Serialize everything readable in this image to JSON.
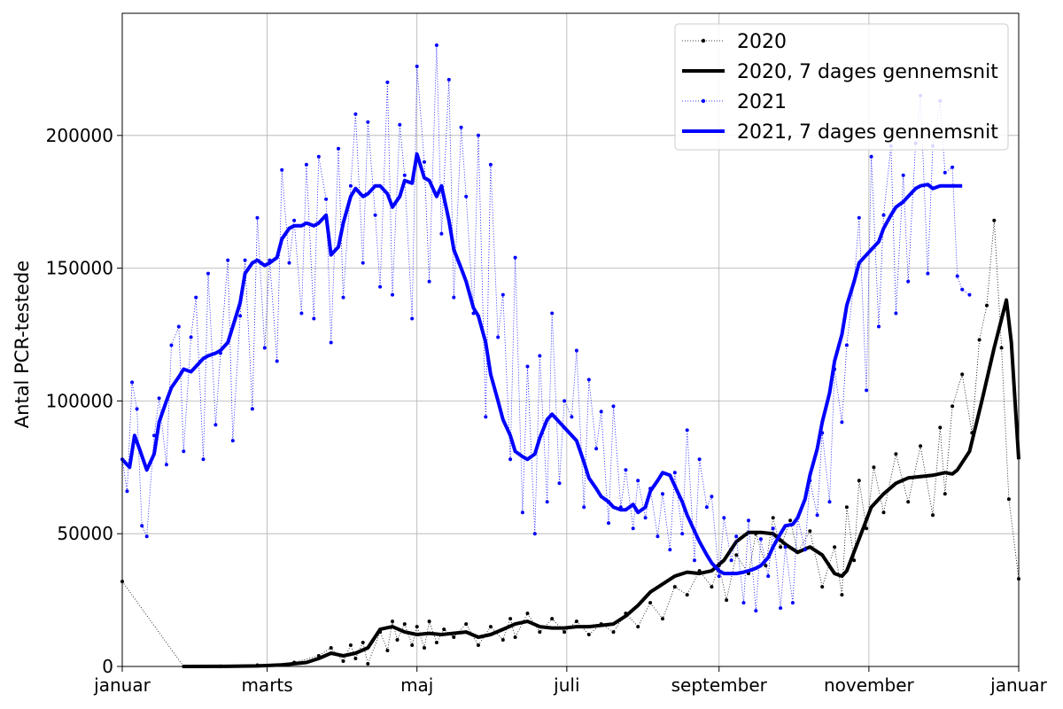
{
  "chart_data": {
    "type": "line",
    "title": "",
    "xlabel": "",
    "ylabel": "Antal PCR-testede",
    "x_ticks": [
      "januar",
      "marts",
      "maj",
      "juli",
      "september",
      "november",
      "januar"
    ],
    "x_tick_days": [
      0,
      59,
      120,
      181,
      243,
      304,
      365
    ],
    "y_ticks": [
      "0",
      "50000",
      "100000",
      "150000",
      "200000"
    ],
    "y_tick_values": [
      0,
      50000,
      100000,
      150000,
      200000
    ],
    "xlim_days": [
      0,
      365
    ],
    "ylim": [
      0,
      246000
    ],
    "grid": true,
    "legend_position": "top-right",
    "legend": [
      {
        "label": "2020",
        "series": "2020_daily"
      },
      {
        "label": "2020, 7 dages gennemsnit",
        "series": "2020_avg"
      },
      {
        "label": "2021",
        "series": "2021_daily"
      },
      {
        "label": "2021, 7 dages gennemsnit",
        "series": "2021_avg"
      }
    ],
    "series": [
      {
        "name": "2020",
        "key": "2020_daily",
        "color": "#000000",
        "style": "dotted-with-markers",
        "x_days": [
          0,
          25,
          40,
          55,
          70,
          80,
          85,
          90,
          93,
          95,
          98,
          100,
          105,
          108,
          110,
          112,
          115,
          118,
          120,
          123,
          125,
          128,
          131,
          135,
          140,
          145,
          150,
          155,
          158,
          160,
          165,
          170,
          175,
          180,
          185,
          190,
          195,
          200,
          205,
          210,
          215,
          220,
          225,
          230,
          235,
          240,
          243,
          246,
          250,
          255,
          258,
          262,
          265,
          268,
          272,
          275,
          280,
          285,
          290,
          293,
          295,
          298,
          300,
          303,
          306,
          310,
          315,
          320,
          325,
          330,
          333,
          335,
          338,
          342,
          346,
          349,
          352,
          355,
          358,
          361,
          365
        ],
        "values": [
          32000,
          0,
          100,
          500,
          1500,
          4000,
          7000,
          2000,
          8000,
          3000,
          9000,
          1000,
          13000,
          6000,
          17000,
          10000,
          16000,
          8000,
          15000,
          7000,
          17000,
          9000,
          14000,
          11000,
          16000,
          8000,
          15000,
          10000,
          18000,
          11000,
          20000,
          13000,
          18000,
          13000,
          17000,
          12000,
          16000,
          13000,
          20000,
          15000,
          24000,
          18000,
          30000,
          27000,
          36000,
          30000,
          38000,
          25000,
          42000,
          35000,
          50000,
          38000,
          56000,
          45000,
          55000,
          43000,
          51000,
          30000,
          45000,
          27000,
          60000,
          40000,
          70000,
          52000,
          75000,
          58000,
          80000,
          62000,
          83000,
          57000,
          90000,
          65000,
          98000,
          110000,
          88000,
          123000,
          136000,
          168000,
          120000,
          63000,
          33000
        ]
      },
      {
        "name": "2020, 7 dages gennemsnit",
        "key": "2020_avg",
        "color": "#000000",
        "style": "thick",
        "x_days": [
          25,
          40,
          55,
          65,
          75,
          80,
          85,
          90,
          95,
          100,
          105,
          110,
          115,
          120,
          125,
          130,
          140,
          145,
          150,
          155,
          160,
          165,
          170,
          175,
          180,
          185,
          190,
          195,
          200,
          205,
          210,
          215,
          220,
          225,
          230,
          235,
          240,
          245,
          250,
          255,
          260,
          265,
          270,
          275,
          280,
          285,
          290,
          293,
          295,
          300,
          305,
          310,
          315,
          320,
          325,
          330,
          335,
          338,
          340,
          345,
          350,
          355,
          360,
          362,
          365
        ],
        "values": [
          0,
          50,
          200,
          600,
          1500,
          3000,
          5000,
          4000,
          5000,
          7000,
          14000,
          15000,
          13000,
          12000,
          12500,
          12000,
          13000,
          11000,
          12000,
          14000,
          16000,
          17000,
          15000,
          14500,
          14500,
          15000,
          15000,
          15500,
          16000,
          19000,
          23000,
          28000,
          31000,
          34000,
          35500,
          35000,
          36000,
          40000,
          47000,
          50500,
          50500,
          50000,
          46000,
          43000,
          45000,
          42000,
          35000,
          34000,
          36000,
          48000,
          60000,
          65000,
          69000,
          71000,
          71500,
          72000,
          73000,
          72500,
          74000,
          81000,
          100000,
          120000,
          138000,
          122000,
          78000
        ]
      },
      {
        "name": "2021",
        "key": "2021_daily",
        "color": "#0000ff",
        "style": "dotted-with-markers",
        "x_days": [
          0,
          2,
          4,
          6,
          8,
          10,
          13,
          15,
          18,
          20,
          23,
          25,
          28,
          30,
          33,
          35,
          38,
          40,
          43,
          45,
          48,
          50,
          53,
          55,
          58,
          60,
          63,
          65,
          68,
          70,
          73,
          75,
          78,
          80,
          83,
          85,
          88,
          90,
          93,
          95,
          98,
          100,
          103,
          105,
          108,
          110,
          113,
          115,
          118,
          120,
          123,
          125,
          128,
          130,
          133,
          135,
          138,
          140,
          143,
          145,
          148,
          150,
          153,
          155,
          158,
          160,
          163,
          165,
          168,
          170,
          173,
          175,
          178,
          180,
          183,
          185,
          188,
          190,
          193,
          195,
          198,
          200,
          203,
          205,
          208,
          210,
          213,
          215,
          218,
          220,
          223,
          225,
          228,
          230,
          233,
          235,
          238,
          240,
          243,
          245,
          248,
          250,
          253,
          255,
          258,
          260,
          263,
          265,
          268,
          270,
          273,
          275,
          278,
          280,
          283,
          285,
          288,
          290,
          293,
          295,
          298,
          300,
          303,
          305,
          308,
          310,
          313,
          315,
          318,
          320,
          323,
          325,
          328,
          330,
          333,
          335,
          338,
          340,
          342,
          345
        ],
        "values": [
          78000,
          66000,
          107000,
          97000,
          53000,
          49000,
          87000,
          101000,
          76000,
          121000,
          128000,
          81000,
          124000,
          139000,
          78000,
          148000,
          91000,
          118000,
          153000,
          85000,
          132000,
          153000,
          97000,
          169000,
          120000,
          153000,
          115000,
          187000,
          152000,
          168000,
          133000,
          189000,
          131000,
          192000,
          176000,
          122000,
          195000,
          139000,
          181000,
          208000,
          152000,
          205000,
          170000,
          143000,
          220000,
          140000,
          204000,
          185000,
          131000,
          226000,
          190000,
          145000,
          234000,
          163000,
          221000,
          139000,
          203000,
          177000,
          133000,
          200000,
          94000,
          189000,
          124000,
          140000,
          78000,
          154000,
          58000,
          113000,
          50000,
          117000,
          62000,
          133000,
          69000,
          100000,
          94000,
          119000,
          60000,
          108000,
          82000,
          96000,
          54000,
          98000,
          60000,
          74000,
          52000,
          70000,
          56000,
          67000,
          49000,
          65000,
          44000,
          73000,
          50000,
          89000,
          40000,
          78000,
          60000,
          64000,
          34000,
          56000,
          40000,
          49000,
          24000,
          55000,
          21000,
          48000,
          34000,
          52000,
          22000,
          45000,
          24000,
          56000,
          44000,
          70000,
          57000,
          88000,
          62000,
          112000,
          92000,
          121000,
          145000,
          169000,
          104000,
          192000,
          128000,
          170000,
          196000,
          133000,
          185000,
          145000,
          197000,
          215000,
          148000,
          196000,
          213000,
          186000,
          188000,
          147000,
          142000,
          140000
        ]
      },
      {
        "name": "2021, 7 dages gennemsnit",
        "key": "2021_avg",
        "color": "#0000ff",
        "style": "thick",
        "x_days": [
          0,
          3,
          5,
          7,
          10,
          13,
          15,
          18,
          20,
          23,
          25,
          28,
          30,
          33,
          35,
          38,
          40,
          43,
          45,
          48,
          50,
          53,
          55,
          58,
          60,
          63,
          65,
          68,
          70,
          73,
          75,
          78,
          80,
          83,
          85,
          88,
          90,
          93,
          95,
          98,
          100,
          103,
          105,
          108,
          110,
          113,
          115,
          118,
          120,
          123,
          125,
          128,
          130,
          133,
          135,
          138,
          140,
          143,
          145,
          148,
          150,
          153,
          155,
          158,
          160,
          163,
          165,
          168,
          170,
          173,
          175,
          178,
          180,
          183,
          185,
          188,
          190,
          193,
          195,
          198,
          200,
          203,
          205,
          208,
          210,
          213,
          215,
          218,
          220,
          223,
          225,
          228,
          230,
          233,
          235,
          238,
          240,
          243,
          245,
          248,
          250,
          253,
          255,
          258,
          260,
          263,
          265,
          268,
          270,
          273,
          275,
          278,
          280,
          283,
          285,
          288,
          290,
          293,
          295,
          298,
          300,
          303,
          305,
          308,
          310,
          313,
          315,
          318,
          320,
          323,
          325,
          328,
          330,
          333,
          335,
          338,
          340,
          342
        ],
        "values": [
          78000,
          75000,
          87000,
          82000,
          74000,
          80000,
          92000,
          100000,
          105000,
          109000,
          112000,
          111000,
          113000,
          116000,
          117000,
          118000,
          119000,
          122000,
          128000,
          137000,
          148000,
          152000,
          153000,
          151000,
          152000,
          154000,
          161000,
          165000,
          166000,
          166000,
          167000,
          166000,
          167000,
          170000,
          155000,
          158000,
          167000,
          177000,
          180000,
          177000,
          178000,
          181000,
          181000,
          178000,
          173000,
          177000,
          183000,
          182000,
          193000,
          184000,
          183000,
          177000,
          181000,
          168000,
          157000,
          150000,
          145000,
          135000,
          132000,
          122000,
          110000,
          100000,
          93000,
          87000,
          81000,
          79000,
          78000,
          80000,
          86000,
          93000,
          95000,
          92000,
          90000,
          87000,
          85000,
          77000,
          71000,
          67000,
          64000,
          62000,
          60000,
          59000,
          59000,
          61000,
          58000,
          60000,
          66000,
          70000,
          73000,
          72000,
          68000,
          62000,
          57000,
          51000,
          47000,
          42000,
          39000,
          36000,
          35000,
          35000,
          35000,
          35500,
          36000,
          37000,
          38000,
          41000,
          45000,
          50000,
          53000,
          53500,
          56000,
          63000,
          72000,
          82000,
          92000,
          103000,
          115000,
          125000,
          136000,
          145000,
          152000,
          155000,
          157000,
          160000,
          165000,
          170000,
          173000,
          175000,
          177000,
          180000,
          181000,
          181500,
          180000,
          181000,
          181000,
          181000,
          181000,
          181000
        ]
      }
    ]
  }
}
